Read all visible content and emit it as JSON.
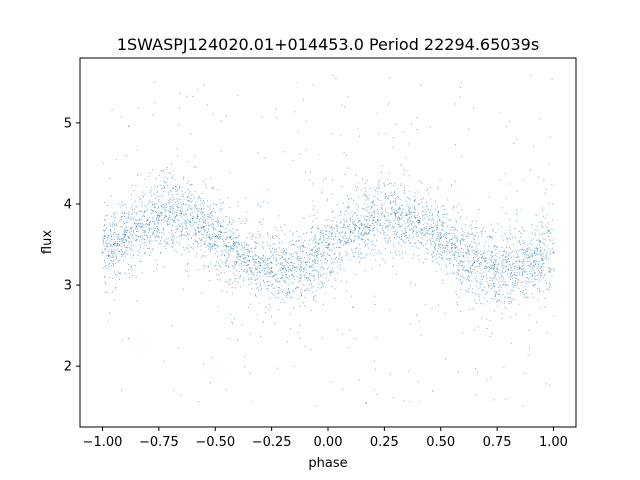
{
  "chart_data": {
    "type": "scatter",
    "title": "1SWASPJ124020.01+014453.0 Period 22294.65039s",
    "xlabel": "phase",
    "ylabel": "flux",
    "xlim": [
      -1.1,
      1.1
    ],
    "ylim": [
      1.25,
      5.8
    ],
    "xticks": [
      -1.0,
      -0.75,
      -0.5,
      -0.25,
      0.0,
      0.25,
      0.5,
      0.75,
      1.0
    ],
    "xtick_labels": [
      "−1.00",
      "−0.75",
      "−0.50",
      "−0.25",
      "0.00",
      "0.25",
      "0.50",
      "0.75",
      "1.00"
    ],
    "yticks": [
      2,
      3,
      4,
      5
    ],
    "ytick_labels": [
      "2",
      "3",
      "4",
      "5"
    ],
    "grid": false,
    "legend": "none",
    "point_color": "#1f77b4",
    "series": [
      {
        "values": [
          {
            "x": -1.0,
            "y": 3.4
          },
          {
            "x": -0.95,
            "y": 3.5
          },
          {
            "x": -0.9,
            "y": 3.62
          },
          {
            "x": -0.85,
            "y": 3.72
          },
          {
            "x": -0.8,
            "y": 3.8
          },
          {
            "x": -0.75,
            "y": 3.86
          },
          {
            "x": -0.7,
            "y": 3.9
          },
          {
            "x": -0.65,
            "y": 3.88
          },
          {
            "x": -0.6,
            "y": 3.82
          },
          {
            "x": -0.55,
            "y": 3.72
          },
          {
            "x": -0.5,
            "y": 3.6
          },
          {
            "x": -0.45,
            "y": 3.48
          },
          {
            "x": -0.4,
            "y": 3.38
          },
          {
            "x": -0.35,
            "y": 3.3
          },
          {
            "x": -0.3,
            "y": 3.24
          },
          {
            "x": -0.25,
            "y": 3.21
          },
          {
            "x": -0.2,
            "y": 3.2
          },
          {
            "x": -0.15,
            "y": 3.22
          },
          {
            "x": -0.1,
            "y": 3.28
          },
          {
            "x": -0.05,
            "y": 3.36
          },
          {
            "x": 0.0,
            "y": 3.46
          },
          {
            "x": 0.05,
            "y": 3.56
          },
          {
            "x": 0.1,
            "y": 3.66
          },
          {
            "x": 0.15,
            "y": 3.74
          },
          {
            "x": 0.2,
            "y": 3.8
          },
          {
            "x": 0.25,
            "y": 3.85
          },
          {
            "x": 0.3,
            "y": 3.88
          },
          {
            "x": 0.35,
            "y": 3.86
          },
          {
            "x": 0.4,
            "y": 3.8
          },
          {
            "x": 0.45,
            "y": 3.7
          },
          {
            "x": 0.5,
            "y": 3.58
          },
          {
            "x": 0.55,
            "y": 3.46
          },
          {
            "x": 0.6,
            "y": 3.36
          },
          {
            "x": 0.65,
            "y": 3.28
          },
          {
            "x": 0.7,
            "y": 3.23
          },
          {
            "x": 0.75,
            "y": 3.2
          },
          {
            "x": 0.8,
            "y": 3.19
          },
          {
            "x": 0.85,
            "y": 3.21
          },
          {
            "x": 0.9,
            "y": 3.26
          },
          {
            "x": 0.95,
            "y": 3.32
          },
          {
            "x": 1.0,
            "y": 3.4
          }
        ]
      }
    ]
  }
}
